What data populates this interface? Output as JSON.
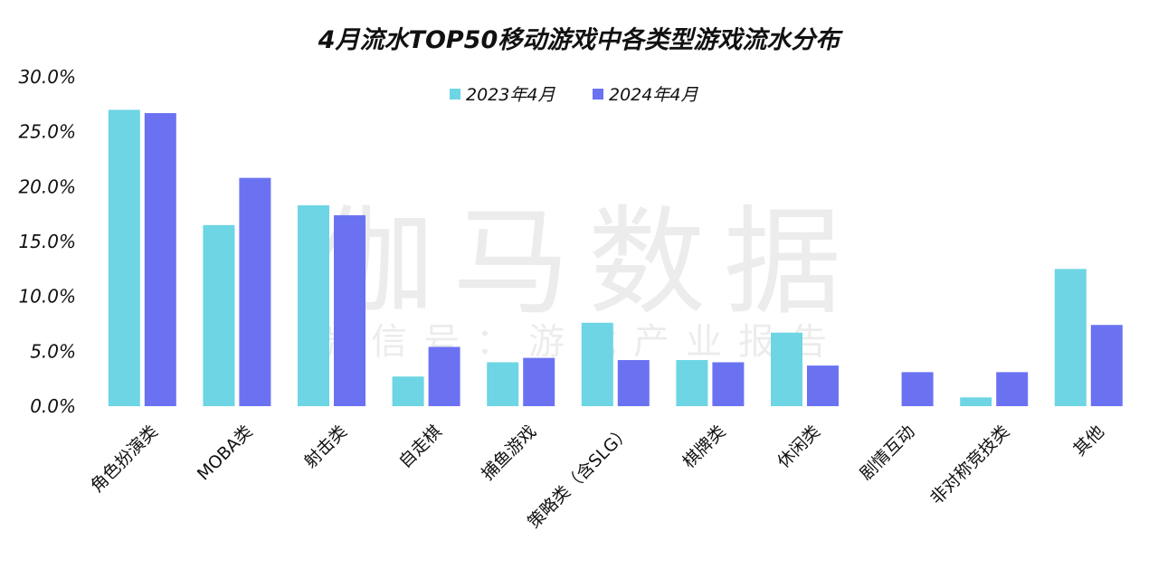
{
  "chart_data": {
    "type": "bar",
    "title": "4月流水TOP50移动游戏中各类型游戏流水分布",
    "xlabel": "",
    "ylabel": "",
    "ylim": [
      0,
      30
    ],
    "yticks": [
      "0.0%",
      "5.0%",
      "10.0%",
      "15.0%",
      "20.0%",
      "25.0%",
      "30.0%"
    ],
    "grid": false,
    "legend_position": "top-center",
    "categories": [
      "角色扮演类",
      "MOBA类",
      "射击类",
      "自走棋",
      "捕鱼游戏",
      "策略类（含SLG）",
      "棋牌类",
      "休闲类",
      "剧情互动",
      "非对称竞技类",
      "其他"
    ],
    "series": [
      {
        "name": "2023年4月",
        "color": "#6dd5e3",
        "values": [
          27.0,
          16.5,
          18.3,
          2.7,
          4.0,
          7.6,
          4.2,
          6.7,
          0.0,
          0.8,
          12.5
        ]
      },
      {
        "name": "2024年4月",
        "color": "#6b72f2",
        "values": [
          26.7,
          20.8,
          17.4,
          5.4,
          4.4,
          4.2,
          4.0,
          3.7,
          3.1,
          3.1,
          7.4
        ]
      }
    ]
  },
  "watermark": {
    "main": "伽马数据",
    "sub": "微信号：游戏产业报告"
  }
}
